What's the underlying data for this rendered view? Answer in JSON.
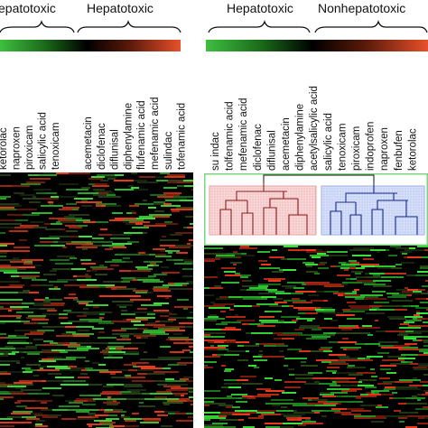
{
  "left_panel": {
    "group_labels": [
      "epatotoxic",
      "Hepatotoxic"
    ],
    "drugs_a": [
      "ketorolac",
      "naproxen",
      "piroxicam",
      "salicylic acid",
      "tenoxicam"
    ],
    "drugs_b": [
      "acemetacin",
      "diclofenac",
      "diflunisal",
      "diphenylamine",
      "flufenamic acid",
      "mefenamic acid",
      "sulindac",
      "tofenamic acid"
    ],
    "colorbar": {
      "low": "#3fbf3f",
      "mid": "#000000",
      "high": "#e8502a"
    }
  },
  "right_panel": {
    "group_labels": [
      "Hepatotoxic",
      "Nonhepatotoxic"
    ],
    "drugs": [
      "su indac",
      "tolfenamic acid",
      "mefenamic acid",
      "diclofenac",
      "diflunisal",
      "acemetacin",
      "diphenylamine",
      "acetylsalicylic acid",
      "salicylic acid",
      "tenoxicam",
      "piroxicam",
      "indoprofen",
      "naproxen",
      "fenbufen",
      "ketorolac"
    ],
    "colorbar": {
      "low": "#3fbf3f",
      "mid": "#000000",
      "high": "#e8502a"
    },
    "cluster_colors": {
      "hepatotoxic": "#e05a5a",
      "nonhepatotoxic": "#4a6fd8",
      "frame": "#7ed37e"
    }
  }
}
